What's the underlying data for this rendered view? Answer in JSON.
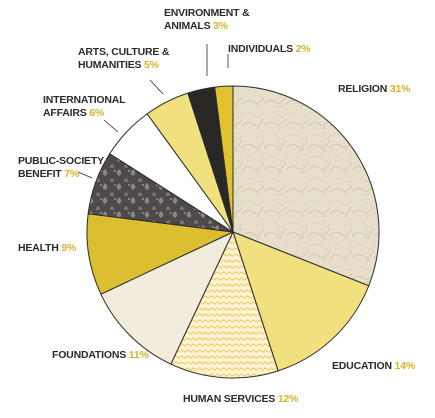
{
  "chart_data": {
    "type": "pie",
    "title": "",
    "start_angle_deg": 0,
    "direction": "clockwise",
    "slices": [
      {
        "label_lines": [
          "RELIGION"
        ],
        "pct_label": "31%",
        "value": 31,
        "color": "#e6dfc9",
        "pattern": "etched"
      },
      {
        "label_lines": [
          "EDUCATION"
        ],
        "pct_label": "14%",
        "value": 14,
        "color": "#f0e07e"
      },
      {
        "label_lines": [
          "HUMAN SERVICES"
        ],
        "pct_label": "12%",
        "value": 12,
        "color": "#fdf4d3",
        "pattern": "engraved"
      },
      {
        "label_lines": [
          "FOUNDATIONS"
        ],
        "pct_label": "11%",
        "value": 11,
        "color": "#f2ecdc"
      },
      {
        "label_lines": [
          "HEALTH"
        ],
        "pct_label": "9%",
        "value": 9,
        "color": "#dcbf30"
      },
      {
        "label_lines": [
          "PUBLIC-SOCIETY",
          "BENEFIT"
        ],
        "pct_label": "7%",
        "value": 7,
        "color": "#5a5656",
        "pattern": "damask"
      },
      {
        "label_lines": [
          "INTERNATIONAL",
          "AFFAIRS"
        ],
        "pct_label": "6%",
        "value": 6,
        "color": "#ffffff"
      },
      {
        "label_lines": [
          "ARTS, CULTURE &",
          "HUMANITIES"
        ],
        "pct_label": "5%",
        "value": 5,
        "color": "#f0e07e"
      },
      {
        "label_lines": [
          "ENVIRONMENT &",
          "ANIMALS"
        ],
        "pct_label": "3%",
        "value": 3,
        "color": "#2a2727"
      },
      {
        "label_lines": [
          "INDIVIDUALS"
        ],
        "pct_label": "2%",
        "value": 2,
        "color": "#e0c32e"
      }
    ],
    "legend": "none"
  }
}
